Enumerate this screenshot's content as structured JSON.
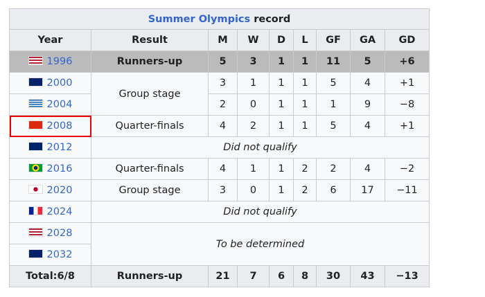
{
  "title": {
    "link": "Summer Olympics",
    "suffix": " record"
  },
  "headers": [
    "Year",
    "Result",
    "M",
    "W",
    "D",
    "L",
    "GF",
    "GA",
    "GD"
  ],
  "rows": [
    {
      "year": "1996",
      "flag": "usa",
      "result": "Runners-up",
      "stats": [
        "5",
        "3",
        "1",
        "1",
        "11",
        "5",
        "+6"
      ]
    },
    {
      "year": "2000",
      "flag": "australia",
      "result": "Group stage",
      "stats": [
        "3",
        "1",
        "1",
        "1",
        "5",
        "4",
        "+1"
      ]
    },
    {
      "year": "2004",
      "flag": "greece",
      "stats": [
        "2",
        "0",
        "1",
        "1",
        "1",
        "9",
        "−8"
      ]
    },
    {
      "year": "2008",
      "flag": "china",
      "result": "Quarter-finals",
      "stats": [
        "4",
        "2",
        "1",
        "1",
        "5",
        "4",
        "+1"
      ]
    },
    {
      "year": "2012",
      "flag": "uk",
      "result": "Did not qualify"
    },
    {
      "year": "2016",
      "flag": "brazil",
      "result": "Quarter-finals",
      "stats": [
        "4",
        "1",
        "1",
        "2",
        "2",
        "4",
        "−2"
      ]
    },
    {
      "year": "2020",
      "flag": "japan",
      "result": "Group stage",
      "stats": [
        "3",
        "0",
        "1",
        "2",
        "6",
        "17",
        "−11"
      ]
    },
    {
      "year": "2024",
      "flag": "france",
      "result": "Did not qualify"
    },
    {
      "year": "2028",
      "flag": "usa",
      "result": "To be determined"
    },
    {
      "year": "2032",
      "flag": "australia"
    }
  ],
  "total": {
    "label": "Total:6/8",
    "result": "Runners-up",
    "stats": [
      "21",
      "7",
      "6",
      "8",
      "30",
      "43",
      "−13"
    ]
  },
  "colors": {
    "link": "#3366cc",
    "highlight_row": "#bbbbbb",
    "selection_box": "#ee0000"
  }
}
